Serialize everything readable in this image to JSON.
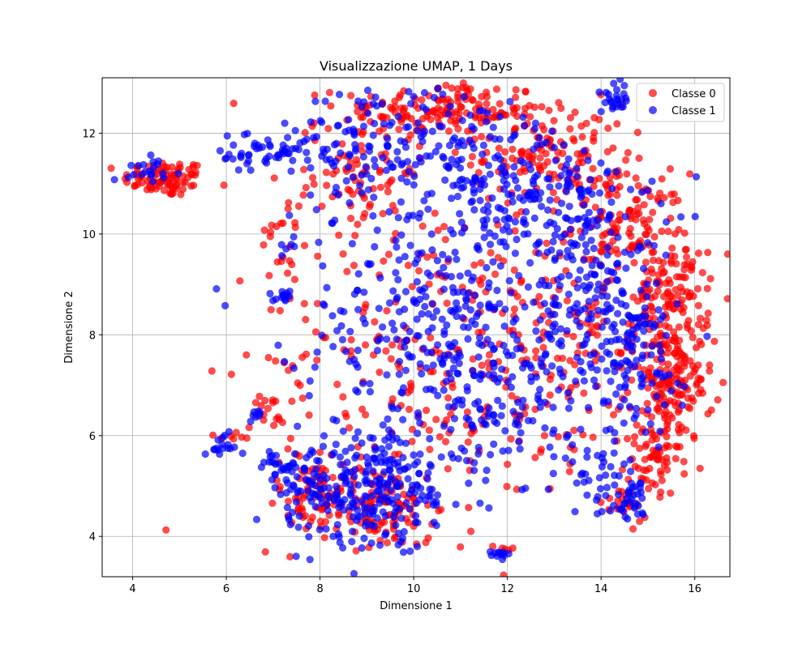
{
  "chart_data": {
    "type": "scatter",
    "title": "Visualizzazione UMAP, 1 Days",
    "xlabel": "Dimensione 1",
    "ylabel": "Dimensione 2",
    "xlim": [
      3.35,
      16.75
    ],
    "ylim": [
      3.2,
      13.1
    ],
    "xticks": [
      4,
      6,
      8,
      10,
      12,
      14,
      16
    ],
    "yticks": [
      4,
      6,
      8,
      10,
      12
    ],
    "grid": true,
    "legend": "top-right",
    "series": [
      {
        "name": "Classe 0",
        "color": "#ff0000",
        "clusters": [
          {
            "cx": 4.7,
            "cy": 11.1,
            "sx": 0.45,
            "sy": 0.18,
            "n": 90
          },
          {
            "cx": 10.6,
            "cy": 12.45,
            "sx": 1.1,
            "sy": 0.3,
            "n": 160
          },
          {
            "cx": 12.9,
            "cy": 11.6,
            "sx": 0.8,
            "sy": 0.5,
            "n": 130
          },
          {
            "cx": 14.6,
            "cy": 10.2,
            "sx": 0.6,
            "sy": 0.5,
            "n": 110
          },
          {
            "cx": 15.5,
            "cy": 8.8,
            "sx": 0.4,
            "sy": 0.6,
            "n": 130
          },
          {
            "cx": 15.5,
            "cy": 7.0,
            "sx": 0.45,
            "sy": 0.55,
            "n": 160
          },
          {
            "cx": 15.1,
            "cy": 5.5,
            "sx": 0.3,
            "sy": 0.4,
            "n": 60
          },
          {
            "cx": 8.8,
            "cy": 11.3,
            "sx": 0.6,
            "sy": 0.7,
            "n": 70
          },
          {
            "cx": 9.2,
            "cy": 4.6,
            "sx": 0.6,
            "sy": 0.4,
            "n": 110
          },
          {
            "cx": 7.8,
            "cy": 4.8,
            "sx": 0.5,
            "sy": 0.4,
            "n": 50
          },
          {
            "cx": 10.5,
            "cy": 7.5,
            "sx": 1.8,
            "sy": 1.6,
            "n": 260
          },
          {
            "cx": 13.3,
            "cy": 8.0,
            "sx": 0.9,
            "sy": 1.3,
            "n": 100
          },
          {
            "cx": 7.3,
            "cy": 9.9,
            "sx": 0.25,
            "sy": 0.8,
            "n": 25
          },
          {
            "cx": 6.9,
            "cy": 6.6,
            "sx": 0.2,
            "sy": 0.3,
            "n": 15
          },
          {
            "cx": 6.2,
            "cy": 6.0,
            "sx": 0.2,
            "sy": 0.1,
            "n": 8
          },
          {
            "cx": 14.4,
            "cy": 4.6,
            "sx": 0.3,
            "sy": 0.2,
            "n": 20
          },
          {
            "cx": 12.0,
            "cy": 3.75,
            "sx": 0.05,
            "sy": 0.05,
            "n": 4
          }
        ]
      },
      {
        "name": "Classe 1",
        "color": "#0000ff",
        "clusters": [
          {
            "cx": 4.5,
            "cy": 11.3,
            "sx": 0.3,
            "sy": 0.12,
            "n": 20
          },
          {
            "cx": 6.9,
            "cy": 11.6,
            "sx": 0.6,
            "sy": 0.25,
            "n": 60
          },
          {
            "cx": 9.2,
            "cy": 11.8,
            "sx": 0.8,
            "sy": 0.6,
            "n": 110
          },
          {
            "cx": 11.3,
            "cy": 11.5,
            "sx": 0.9,
            "sy": 0.7,
            "n": 120
          },
          {
            "cx": 12.9,
            "cy": 10.6,
            "sx": 0.8,
            "sy": 0.8,
            "n": 110
          },
          {
            "cx": 14.0,
            "cy": 9.3,
            "sx": 0.7,
            "sy": 0.9,
            "n": 130
          },
          {
            "cx": 14.6,
            "cy": 7.5,
            "sx": 0.6,
            "sy": 0.8,
            "n": 110
          },
          {
            "cx": 10.6,
            "cy": 8.3,
            "sx": 1.5,
            "sy": 1.3,
            "n": 320
          },
          {
            "cx": 12.3,
            "cy": 6.9,
            "sx": 1.1,
            "sy": 0.8,
            "n": 120
          },
          {
            "cx": 9.4,
            "cy": 5.0,
            "sx": 0.9,
            "sy": 0.6,
            "n": 220
          },
          {
            "cx": 7.9,
            "cy": 4.8,
            "sx": 0.5,
            "sy": 0.45,
            "n": 80
          },
          {
            "cx": 7.1,
            "cy": 5.4,
            "sx": 0.25,
            "sy": 0.15,
            "n": 25
          },
          {
            "cx": 14.3,
            "cy": 12.7,
            "sx": 0.15,
            "sy": 0.15,
            "n": 25
          },
          {
            "cx": 14.1,
            "cy": 5.0,
            "sx": 0.5,
            "sy": 0.3,
            "n": 40
          },
          {
            "cx": 7.2,
            "cy": 8.75,
            "sx": 0.1,
            "sy": 0.07,
            "n": 12
          },
          {
            "cx": 7.3,
            "cy": 9.8,
            "sx": 0.1,
            "sy": 0.1,
            "n": 6
          },
          {
            "cx": 5.9,
            "cy": 5.75,
            "sx": 0.15,
            "sy": 0.12,
            "n": 15
          },
          {
            "cx": 6.6,
            "cy": 6.45,
            "sx": 0.08,
            "sy": 0.08,
            "n": 8
          },
          {
            "cx": 11.85,
            "cy": 3.65,
            "sx": 0.12,
            "sy": 0.04,
            "n": 12
          },
          {
            "cx": 14.7,
            "cy": 4.6,
            "sx": 0.15,
            "sy": 0.25,
            "n": 25
          }
        ]
      }
    ]
  }
}
